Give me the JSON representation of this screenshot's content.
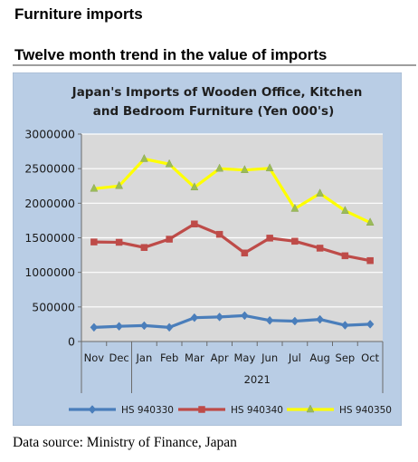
{
  "page": {
    "heading": "Furniture imports",
    "subheading": "Twelve month trend in the value of imports",
    "source": "Data source: Ministry of Finance, Japan"
  },
  "chart_data": {
    "type": "line",
    "title": "Japan's Imports of  Wooden  Office, Kitchen and Bedroom Furniture (Yen 000's)",
    "title_lines": [
      "Japan's Imports of  Wooden  Office, Kitchen",
      "and Bedroom Furniture (Yen 000's)"
    ],
    "categories": [
      "Nov",
      "Dec",
      "Jan",
      "Feb",
      "Mar",
      "Apr",
      "May",
      "Jun",
      "Jul",
      "Aug",
      "Sep",
      "Oct"
    ],
    "year_group": {
      "label": "2021",
      "from_index": 2,
      "to_index": 11
    },
    "ylim": [
      0,
      3000000
    ],
    "yticks": [
      0,
      500000,
      1000000,
      1500000,
      2000000,
      2500000,
      3000000
    ],
    "ytick_labels": [
      "0",
      "500000",
      "1000000",
      "1500000",
      "2000000",
      "2500000",
      "3000000"
    ],
    "grid": true,
    "legend_position": "bottom",
    "colors": {
      "outer_bg": "#b9cde5",
      "plot_bg": "#d9d9d9",
      "grid": "#ffffff"
    },
    "series": [
      {
        "name": "HS 940330",
        "color": "#4a7ebb",
        "marker": "diamond",
        "values": [
          205000,
          220000,
          230000,
          205000,
          345000,
          355000,
          375000,
          305000,
          295000,
          320000,
          235000,
          250000
        ]
      },
      {
        "name": "HS 940340",
        "color": "#be4b48",
        "marker": "square",
        "values": [
          1440000,
          1435000,
          1360000,
          1480000,
          1700000,
          1550000,
          1280000,
          1495000,
          1450000,
          1350000,
          1240000,
          1170000
        ]
      },
      {
        "name": "HS 940350",
        "color": "#ffff00",
        "marker": "triangle",
        "values": [
          2210000,
          2250000,
          2640000,
          2565000,
          2230000,
          2500000,
          2480000,
          2505000,
          1920000,
          2140000,
          1890000,
          1720000
        ]
      }
    ]
  }
}
